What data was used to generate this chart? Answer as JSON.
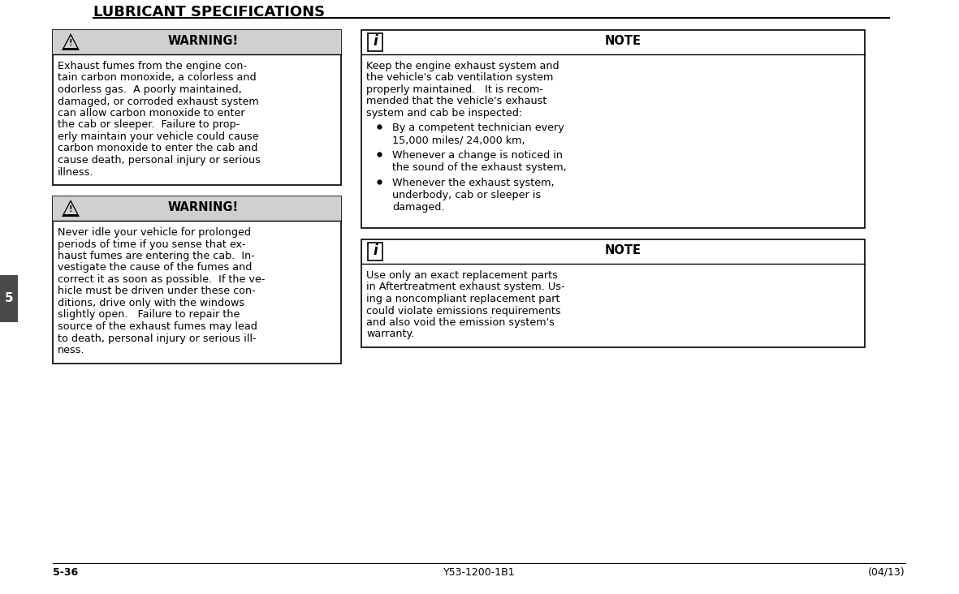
{
  "page_title": "LUBRICANT SPECIFICATIONS",
  "chapter_num": "5",
  "page_num": "5-36",
  "doc_id": "Y53-1200-1B1",
  "doc_date": "(04/13)",
  "bg_color": "#ffffff",
  "box_border_color": "#000000",
  "warning_header_bg": "#d0d0d0",
  "warning1_title": "WARNING!",
  "warning1_body_lines": [
    "Exhaust fumes from the engine con-",
    "tain carbon monoxide, a colorless and",
    "odorless gas.  A poorly maintained,",
    "damaged, or corroded exhaust system",
    "can allow carbon monoxide to enter",
    "the cab or sleeper.  Failure to prop-",
    "erly maintain your vehicle could cause",
    "carbon monoxide to enter the cab and",
    "cause death, personal injury or serious",
    "illness."
  ],
  "warning2_title": "WARNING!",
  "warning2_body_lines": [
    "Never idle your vehicle for prolonged",
    "periods of time if you sense that ex-",
    "haust fumes are entering the cab.  In-",
    "vestigate the cause of the fumes and",
    "correct it as soon as possible.  If the ve-",
    "hicle must be driven under these con-",
    "ditions, drive only with the windows",
    "slightly open.   Failure to repair the",
    "source of the exhaust fumes may lead",
    "to death, personal injury or serious ill-",
    "ness."
  ],
  "note1_title": "NOTE",
  "note1_body_lines": [
    "Keep the engine exhaust system and",
    "the vehicle's cab ventilation system",
    "properly maintained.   It is recom-",
    "mended that the vehicle's exhaust",
    "system and cab be inspected:"
  ],
  "note1_bullets": [
    [
      "By a competent technician every",
      "15,000 miles/ 24,000 km,"
    ],
    [
      "Whenever a change is noticed in",
      "the sound of the exhaust system,"
    ],
    [
      "Whenever the exhaust system,",
      "underbody, cab or sleeper is",
      "damaged."
    ]
  ],
  "note2_title": "NOTE",
  "note2_body_lines": [
    "Use only an exact replacement parts",
    "in Aftertreatment exhaust system. Us-",
    "ing a noncompliant replacement part",
    "could violate emissions requirements",
    "and also void the emission system's",
    "warranty."
  ]
}
